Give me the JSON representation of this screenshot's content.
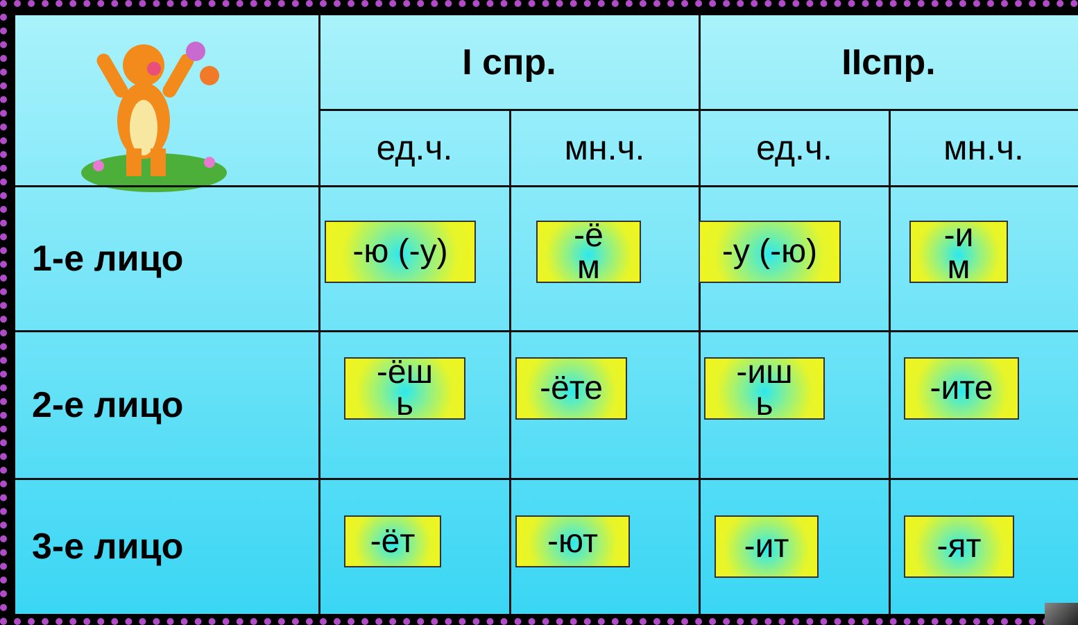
{
  "table": {
    "header": [
      "I спр.",
      "IIспр."
    ],
    "subheader": [
      "ед.ч.",
      "мн.ч.",
      "ед.ч.",
      "мн.ч."
    ],
    "rows": [
      {
        "label": "1-е лицо",
        "cells": [
          "-ю (-у)",
          "-ём",
          "-у (-ю)",
          "-им"
        ]
      },
      {
        "label": "2-е лицо",
        "cells": [
          "-ёшь",
          "-ёте",
          "-ишь",
          "-ите"
        ]
      },
      {
        "label": "3-е лицо",
        "cells": [
          "-ёт",
          "-ют",
          "-ит",
          "-ят"
        ]
      }
    ]
  }
}
